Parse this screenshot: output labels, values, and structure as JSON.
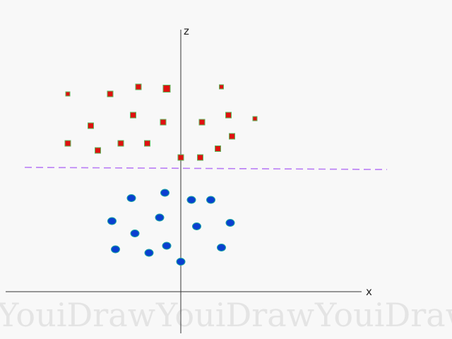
{
  "chart_data": {
    "type": "scatter",
    "axes": {
      "x_label": "x",
      "z_label": "z"
    },
    "divider": {
      "style": "dashed",
      "color": "#b97cf5"
    },
    "series": [
      {
        "marker": "square",
        "fill": "#e01010",
        "stroke": "#5cb85c",
        "points": [
          {
            "x": -3.2,
            "z": 5.6,
            "s": "small"
          },
          {
            "x": -2.0,
            "z": 5.6,
            "s": "normal"
          },
          {
            "x": -1.2,
            "z": 5.8,
            "s": "normal"
          },
          {
            "x": -0.4,
            "z": 5.75,
            "s": "large"
          },
          {
            "x": 1.15,
            "z": 5.8,
            "s": "small"
          },
          {
            "x": -1.35,
            "z": 5.0,
            "s": "normal"
          },
          {
            "x": -2.55,
            "z": 4.7,
            "s": "normal"
          },
          {
            "x": -0.5,
            "z": 4.8,
            "s": "normal"
          },
          {
            "x": 0.6,
            "z": 4.8,
            "s": "normal"
          },
          {
            "x": 1.35,
            "z": 5.0,
            "s": "normal"
          },
          {
            "x": 2.1,
            "z": 4.9,
            "s": "small"
          },
          {
            "x": 1.45,
            "z": 4.4,
            "s": "normal"
          },
          {
            "x": -3.2,
            "z": 4.2,
            "s": "normal"
          },
          {
            "x": -2.35,
            "z": 4.0,
            "s": "normal"
          },
          {
            "x": -1.7,
            "z": 4.2,
            "s": "normal"
          },
          {
            "x": -0.95,
            "z": 4.2,
            "s": "normal"
          },
          {
            "x": 0.0,
            "z": 3.8,
            "s": "normal"
          },
          {
            "x": 0.55,
            "z": 3.8,
            "s": "normal"
          },
          {
            "x": 1.05,
            "z": 4.05,
            "s": "normal"
          }
        ]
      },
      {
        "marker": "circle",
        "fill": "#0a3fd0",
        "stroke": "#1aa3a3",
        "points": [
          {
            "x": -1.4,
            "z": 2.65
          },
          {
            "x": -0.45,
            "z": 2.8
          },
          {
            "x": 0.3,
            "z": 2.6
          },
          {
            "x": 0.85,
            "z": 2.6
          },
          {
            "x": -1.95,
            "z": 2.0
          },
          {
            "x": -0.6,
            "z": 2.1
          },
          {
            "x": 0.45,
            "z": 1.85
          },
          {
            "x": 1.4,
            "z": 1.95
          },
          {
            "x": -1.3,
            "z": 1.65
          },
          {
            "x": -1.85,
            "z": 1.2
          },
          {
            "x": -0.9,
            "z": 1.1
          },
          {
            "x": -0.4,
            "z": 1.3
          },
          {
            "x": 1.15,
            "z": 1.25
          },
          {
            "x": 0.0,
            "z": 0.85
          }
        ]
      }
    ]
  },
  "watermark": {
    "text": "YouiDraw",
    "repeat": 3
  }
}
